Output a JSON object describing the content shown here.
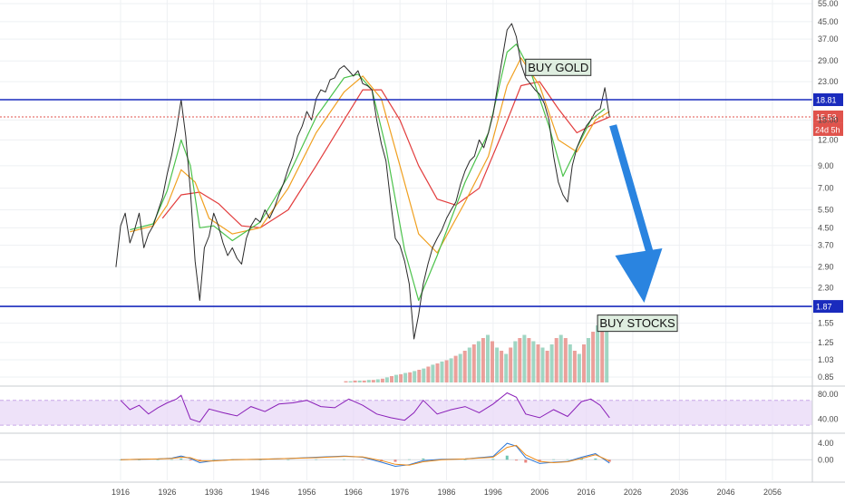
{
  "chart_data": [
    {
      "type": "line",
      "panel": "price",
      "title": "",
      "xlabel": "",
      "ylabel": "",
      "scale": "log",
      "ylim": [
        0.8,
        56
      ],
      "xlim": [
        1913,
        2068
      ],
      "grid": true,
      "y_ticks": [
        "0.85",
        "1.03",
        "1.25",
        "1.55",
        "1.87",
        "2.30",
        "2.90",
        "3.70",
        "4.50",
        "5.50",
        "7.00",
        "9.00",
        "12.00",
        "15.00",
        "18.81",
        "23.00",
        "29.00",
        "37.00",
        "45.00",
        "55.00"
      ],
      "y_tick_values": [
        0.85,
        1.03,
        1.25,
        1.55,
        1.87,
        2.3,
        2.9,
        3.7,
        4.5,
        5.5,
        7.0,
        9.0,
        12.0,
        15.0,
        18.81,
        23.0,
        29.0,
        37.0,
        45.0,
        55.0
      ],
      "x_ticks": [
        "1916",
        "1926",
        "1936",
        "1946",
        "1956",
        "1966",
        "1976",
        "1986",
        "1996",
        "2006",
        "2016",
        "2026",
        "2036",
        "2046",
        "2056"
      ],
      "x_tick_values": [
        1916,
        1926,
        1936,
        1946,
        1956,
        1966,
        1976,
        1986,
        1996,
        2006,
        2016,
        2026,
        2036,
        2046,
        2056
      ],
      "series": [
        {
          "name": "",
          "color": "#2a2a2a",
          "x": [
            1915,
            1916,
            1917,
            1918,
            1919,
            1920,
            1921,
            1922,
            1923,
            1924,
            1925,
            1926,
            1927,
            1928,
            1929,
            1930,
            1931,
            1932,
            1933,
            1934,
            1935,
            1936,
            1937,
            1938,
            1939,
            1940,
            1941,
            1942,
            1943,
            1944,
            1945,
            1946,
            1947,
            1948,
            1949,
            1950,
            1951,
            1952,
            1953,
            1954,
            1955,
            1956,
            1957,
            1958,
            1959,
            1960,
            1961,
            1962,
            1963,
            1964,
            1965,
            1966,
            1967,
            1968,
            1969,
            1970,
            1971,
            1972,
            1973,
            1974,
            1975,
            1976,
            1977,
            1978,
            1979,
            1980,
            1981,
            1982,
            1983,
            1984,
            1985,
            1986,
            1987,
            1988,
            1989,
            1990,
            1991,
            1992,
            1993,
            1994,
            1995,
            1996,
            1997,
            1998,
            1999,
            2000,
            2001,
            2002,
            2003,
            2004,
            2005,
            2006,
            2007,
            2008,
            2009,
            2010,
            2011,
            2012,
            2013,
            2014,
            2015,
            2016,
            2017,
            2018,
            2019,
            2020,
            2021
          ],
          "y": [
            2.9,
            4.6,
            5.3,
            3.8,
            4.4,
            5.3,
            3.6,
            4.2,
            4.6,
            5.4,
            6.3,
            8.2,
            10.2,
            13.5,
            18.8,
            12.5,
            6.8,
            3.1,
            2.0,
            3.6,
            4.1,
            5.3,
            4.6,
            3.8,
            3.3,
            3.6,
            3.2,
            3.0,
            4.0,
            4.6,
            5.0,
            4.8,
            5.5,
            5.0,
            5.6,
            6.5,
            7.4,
            8.7,
            10.0,
            12.5,
            14.0,
            16.5,
            15.0,
            19.0,
            21.0,
            20.5,
            23.5,
            24.0,
            26.5,
            27.5,
            26.0,
            24.5,
            26.0,
            22.5,
            22.0,
            21.0,
            15.0,
            11.5,
            9.5,
            6.0,
            4.0,
            3.7,
            3.1,
            2.4,
            1.3,
            1.7,
            2.4,
            3.0,
            3.6,
            4.0,
            4.4,
            5.0,
            5.5,
            6.0,
            7.3,
            8.5,
            9.5,
            10.0,
            12.0,
            11.0,
            13.0,
            16.0,
            22.0,
            30.0,
            41.0,
            44.0,
            38.0,
            28.0,
            24.0,
            22.5,
            21.0,
            20.0,
            18.0,
            15.0,
            10.0,
            7.5,
            6.5,
            6.0,
            9.0,
            11.0,
            12.5,
            14.0,
            15.0,
            16.5,
            17.0,
            21.5,
            15.5
          ]
        },
        {
          "name": "",
          "color": "#4bc24b",
          "x": [
            1918,
            1923,
            1926,
            1929,
            1931,
            1933,
            1936,
            1940,
            1946,
            1952,
            1958,
            1964,
            1967,
            1970,
            1973,
            1977,
            1980,
            1984,
            1990,
            1995,
            1999,
            2001,
            2004,
            2008,
            2011,
            2014,
            2017,
            2020
          ],
          "y": [
            4.4,
            4.7,
            6.8,
            12.0,
            9.0,
            4.5,
            4.6,
            3.9,
            4.8,
            8.0,
            15.5,
            24.0,
            25.0,
            21.0,
            11.0,
            3.5,
            2.0,
            3.3,
            7.5,
            13.0,
            32.0,
            35.0,
            26.0,
            14.0,
            8.0,
            11.0,
            15.0,
            17.0
          ]
        },
        {
          "name": "",
          "color": "#f0a020",
          "x": [
            1918,
            1923,
            1926,
            1929,
            1932,
            1935,
            1940,
            1946,
            1952,
            1958,
            1964,
            1968,
            1972,
            1976,
            1980,
            1984,
            1990,
            1995,
            1999,
            2002,
            2006,
            2010,
            2014,
            2018,
            2021
          ],
          "y": [
            4.3,
            4.6,
            5.8,
            8.6,
            7.5,
            5.0,
            4.2,
            4.5,
            7.0,
            13.0,
            20.5,
            24.5,
            19.0,
            9.0,
            4.2,
            3.4,
            6.0,
            10.0,
            22.0,
            30.0,
            22.0,
            12.0,
            10.5,
            15.0,
            16.5
          ]
        },
        {
          "name": "",
          "color": "#e23c3c",
          "x": [
            1925,
            1929,
            1933,
            1937,
            1942,
            1946,
            1952,
            1958,
            1964,
            1968,
            1972,
            1976,
            1980,
            1984,
            1988,
            1993,
            1998,
            2002,
            2006,
            2010,
            2014,
            2018,
            2021
          ],
          "y": [
            5.0,
            6.5,
            6.7,
            5.9,
            4.6,
            4.5,
            5.5,
            9.0,
            15.0,
            21.0,
            21.0,
            15.0,
            9.0,
            6.2,
            5.8,
            7.0,
            13.0,
            22.0,
            23.0,
            17.0,
            13.0,
            14.5,
            15.5
          ]
        }
      ],
      "horizontal_lines": [
        {
          "value": 18.81,
          "label": "18.81",
          "color": "#1a2bbd"
        },
        {
          "value": 1.87,
          "label": "1.87",
          "color": "#1a2bbd"
        },
        {
          "value": 15.53,
          "label": "15.53",
          "color": "#e0534c"
        }
      ],
      "price_tags": [
        "15.53",
        "24d 5h"
      ],
      "annotations": [
        {
          "text": "BUY GOLD",
          "anchor": [
            2010,
            27.0
          ]
        },
        {
          "text": "BUY STOCKS",
          "anchor": [
            2027,
            1.55
          ]
        }
      ],
      "arrow": {
        "color": "#2a84e0",
        "from": [
          2020,
          14.0
        ],
        "to": [
          2030,
          1.95
        ]
      }
    },
    {
      "type": "bar",
      "panel": "volume",
      "bar_colors": [
        "#e88f89",
        "#8fcfb9"
      ],
      "x_start": 1964,
      "x_end": 2021,
      "values": [
        0.02,
        0.02,
        0.03,
        0.03,
        0.03,
        0.04,
        0.04,
        0.05,
        0.06,
        0.08,
        0.1,
        0.12,
        0.13,
        0.15,
        0.16,
        0.18,
        0.2,
        0.22,
        0.25,
        0.28,
        0.3,
        0.33,
        0.35,
        0.38,
        0.42,
        0.45,
        0.5,
        0.55,
        0.6,
        0.65,
        0.7,
        0.75,
        0.65,
        0.55,
        0.5,
        0.45,
        0.55,
        0.65,
        0.7,
        0.75,
        0.7,
        0.65,
        0.6,
        0.55,
        0.5,
        0.6,
        0.7,
        0.75,
        0.7,
        0.6,
        0.5,
        0.45,
        0.6,
        0.7,
        0.8,
        0.9,
        1.0,
        0.95
      ]
    },
    {
      "type": "line",
      "panel": "rsi",
      "ylim": [
        20,
        90
      ],
      "y_ticks": [
        "80.00",
        "40.00"
      ],
      "y_tick_values": [
        80,
        40
      ],
      "band": [
        30,
        70
      ],
      "band_color": "#e7d6f7",
      "series": [
        {
          "name": "",
          "color": "#8a1fb8",
          "x": [
            1916,
            1918,
            1920,
            1922,
            1924,
            1926,
            1928,
            1929,
            1931,
            1933,
            1935,
            1938,
            1941,
            1944,
            1947,
            1950,
            1953,
            1956,
            1959,
            1962,
            1965,
            1968,
            1971,
            1974,
            1977,
            1979,
            1981,
            1984,
            1987,
            1990,
            1993,
            1996,
            1999,
            2001,
            2003,
            2006,
            2009,
            2012,
            2015,
            2017,
            2019,
            2021
          ],
          "y": [
            70,
            55,
            62,
            48,
            58,
            66,
            72,
            78,
            40,
            35,
            56,
            50,
            45,
            60,
            52,
            64,
            66,
            70,
            60,
            58,
            72,
            62,
            48,
            42,
            38,
            50,
            70,
            48,
            55,
            60,
            50,
            64,
            82,
            75,
            48,
            42,
            55,
            44,
            68,
            72,
            62,
            42
          ]
        }
      ]
    },
    {
      "type": "line",
      "panel": "macd",
      "ylim": [
        -5,
        6
      ],
      "y_ticks": [
        "4.00",
        "0.00"
      ],
      "y_tick_values": [
        4,
        0
      ],
      "series": [
        {
          "name": "",
          "color": "#2a76d8",
          "x": [
            1916,
            1920,
            1924,
            1927,
            1929,
            1931,
            1933,
            1936,
            1940,
            1946,
            1952,
            1958,
            1964,
            1968,
            1972,
            1975,
            1978,
            1981,
            1985,
            1990,
            1996,
            1999,
            2001,
            2003,
            2006,
            2009,
            2012,
            2015,
            2018,
            2021
          ],
          "y": [
            0.0,
            0.1,
            0.2,
            0.4,
            0.9,
            0.3,
            -0.7,
            -0.2,
            0.0,
            0.1,
            0.3,
            0.6,
            0.9,
            0.6,
            -0.6,
            -1.6,
            -1.2,
            -0.2,
            0.1,
            0.2,
            0.8,
            4.0,
            3.3,
            0.5,
            -0.9,
            -0.6,
            -0.4,
            0.6,
            1.5,
            -0.8
          ]
        },
        {
          "name": "",
          "color": "#f08c18",
          "x": [
            1916,
            1920,
            1924,
            1927,
            1929,
            1931,
            1933,
            1936,
            1940,
            1946,
            1952,
            1958,
            1964,
            1968,
            1972,
            1975,
            1978,
            1981,
            1985,
            1990,
            1996,
            1999,
            2001,
            2003,
            2006,
            2009,
            2012,
            2015,
            2018,
            2021
          ],
          "y": [
            0.0,
            0.1,
            0.2,
            0.3,
            0.6,
            0.5,
            -0.3,
            -0.3,
            0.0,
            0.1,
            0.3,
            0.5,
            0.8,
            0.7,
            -0.2,
            -1.1,
            -1.3,
            -0.5,
            0.0,
            0.2,
            0.6,
            3.0,
            3.5,
            1.2,
            -0.4,
            -0.7,
            -0.5,
            0.3,
            1.2,
            -0.3
          ]
        }
      ]
    }
  ]
}
